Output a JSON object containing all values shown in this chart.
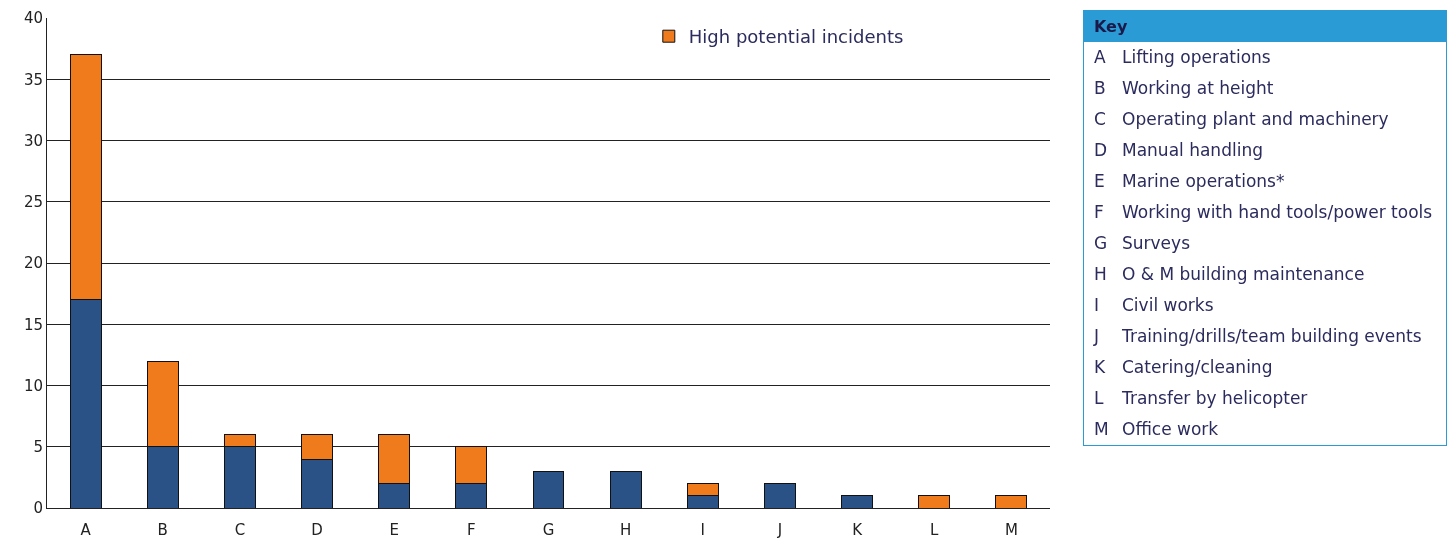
{
  "chart_data": [
    {
      "type": "bar",
      "stacked": true,
      "categories": [
        "A",
        "B",
        "C",
        "D",
        "E",
        "F",
        "G",
        "H",
        "I",
        "J",
        "K",
        "L",
        "M"
      ],
      "series": [
        {
          "color": "#2a5286",
          "values": [
            17,
            5,
            5,
            4,
            2,
            2,
            3,
            3,
            1,
            2,
            1,
            0,
            0
          ]
        },
        {
          "name": "High potential incidents",
          "color": "#ef7b1c",
          "values": [
            20,
            7,
            1,
            2,
            4,
            3,
            0,
            0,
            1,
            0,
            0,
            1,
            1
          ]
        }
      ],
      "ylim": [
        0,
        40
      ],
      "yticks": [
        0,
        5,
        10,
        15,
        20,
        25,
        30,
        35,
        40
      ],
      "grid": "y",
      "legend": "top right"
    },
    {
      "type": "other",
      "title": "Key",
      "categories": [
        "A",
        "B",
        "C",
        "D",
        "E",
        "F",
        "G",
        "H",
        "I",
        "J",
        "K",
        "L",
        "M"
      ],
      "annotations": [
        "Lifting operations",
        "Working at height",
        "Operating plant and machinery",
        "Manual handling",
        "Marine operations*",
        "Working with hand tools/power tools",
        "Surveys",
        "O & M building maintenance",
        "Civil works",
        "Training/drills/team building events",
        "Catering/cleaning",
        "Transfer by helicopter",
        "Office work"
      ]
    }
  ]
}
